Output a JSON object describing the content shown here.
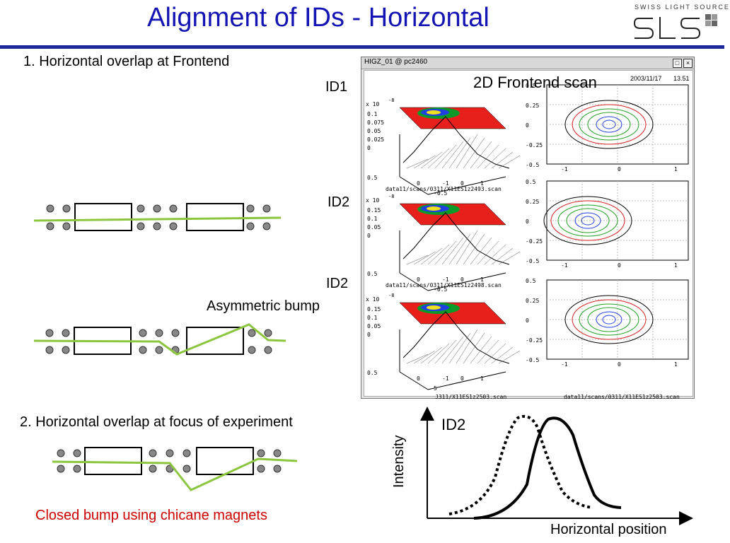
{
  "title": "Alignment of IDs - Horizontal",
  "logo": {
    "text": "SWISS LIGHT SOURCE",
    "mark": "SLS"
  },
  "section1": {
    "heading": "1. Horizontal overlap at Frontend"
  },
  "labels": {
    "id1": "ID1",
    "id2_a": "ID2",
    "id2_b": "ID2",
    "asymmetric": "Asymmetric bump"
  },
  "window": {
    "title": "HIGZ_01 @ pc2460",
    "overlay": "2D Frontend scan",
    "date": "2003/11/17",
    "time": "13.51",
    "panels": [
      {
        "left_ticks": [
          "0.1",
          "0.075",
          "0.05",
          "0.025",
          "0"
        ],
        "scale": "x 10",
        "scale_exp": "-8",
        "x_ticks": [
          "0.5",
          "0",
          "-1",
          "0",
          "1"
        ],
        "x_extra": "-0.5",
        "captions": [
          "data11/scans/0311/X11ES1z2493.scan",
          "data11/scans/0311/X11ES1z2493.scan"
        ]
      },
      {
        "left_ticks": [
          "0.15",
          "0.1",
          "0.05",
          "0"
        ],
        "scale": "x 10",
        "scale_exp": "-8",
        "x_ticks": [
          "0.5",
          "0",
          "-1",
          "0",
          "1"
        ],
        "x_extra": "-0.5",
        "captions": [
          "data11/scans/0311/X11ES1z2498.scan",
          "data11/scans/0311/X11ES1z2498.scan"
        ]
      },
      {
        "left_ticks": [
          "0.15",
          "0.1",
          "0.05",
          "0"
        ],
        "scale": "x 10",
        "scale_exp": "-8",
        "x_ticks": [
          "0.5",
          "0",
          "-1",
          "0",
          "1"
        ],
        "x_extra": "5",
        "captions": [
          "J311/X11ES1z2503.scan",
          "data11/scans/0311/X11ES1z2503.scan"
        ]
      }
    ],
    "right_y_ticks": [
      "0.5",
      "0.25",
      "0",
      "-0.25",
      "-0.5"
    ],
    "right_x_ticks": [
      "-1",
      "0",
      "1"
    ]
  },
  "section2": {
    "heading": "2. Horizontal overlap at focus of experiment",
    "caption": "Closed bump using chicane magnets"
  },
  "plot": {
    "label": "ID2",
    "ylabel": "Intensity",
    "xlabel": "Horizontal position"
  },
  "colors": {
    "title": "#1414b4",
    "beam": "#8cc63f",
    "caption": "#cc0000"
  }
}
